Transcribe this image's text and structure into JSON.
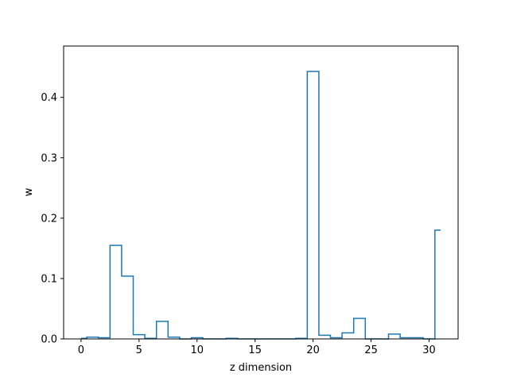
{
  "chart_data": {
    "type": "step",
    "title": "",
    "xlabel": "z dimension",
    "ylabel": "w",
    "xlim": [
      -1.5,
      32.5
    ],
    "ylim": [
      0,
      0.485
    ],
    "xticks": [
      0,
      5,
      10,
      15,
      20,
      25,
      30
    ],
    "yticks": [
      0.0,
      0.1,
      0.2,
      0.3,
      0.4
    ],
    "ytick_labels": [
      "0.0",
      "0.1",
      "0.2",
      "0.3",
      "0.4"
    ],
    "step_where": "mid",
    "grid": false,
    "legend": "none",
    "series": [
      {
        "name": "",
        "color": "#1f77b4",
        "x": [
          0,
          1,
          2,
          3,
          4,
          5,
          6,
          7,
          8,
          9,
          10,
          11,
          12,
          13,
          14,
          15,
          16,
          17,
          18,
          19,
          20,
          21,
          22,
          23,
          24,
          25,
          26,
          27,
          28,
          29,
          30,
          31
        ],
        "values": [
          0.001,
          0.003,
          0.002,
          0.155,
          0.104,
          0.007,
          0.001,
          0.029,
          0.003,
          0.0,
          0.002,
          0.0,
          0.0,
          0.001,
          0.0,
          0.0,
          0.0,
          0.0,
          0.0,
          0.001,
          0.443,
          0.006,
          0.002,
          0.01,
          0.034,
          0.0,
          0.0,
          0.008,
          0.002,
          0.002,
          0.0,
          0.18
        ]
      }
    ]
  }
}
